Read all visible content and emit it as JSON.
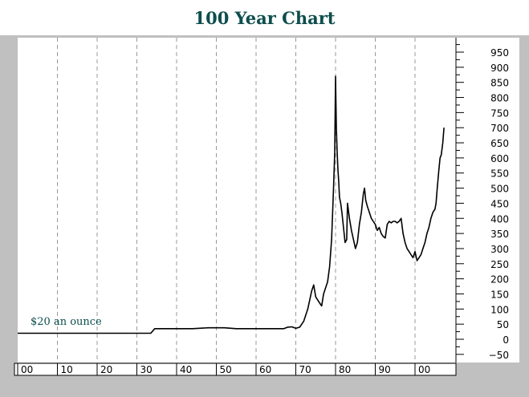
{
  "chart_data": {
    "type": "line",
    "title": "100 Year Chart",
    "xlabel": "",
    "ylabel": "",
    "x_ticks": [
      "00",
      "10",
      "20",
      "30",
      "40",
      "50",
      "60",
      "70",
      "80",
      "90",
      "00"
    ],
    "y_ticks": [
      -50,
      0,
      50,
      100,
      150,
      200,
      250,
      300,
      350,
      400,
      450,
      500,
      550,
      600,
      650,
      700,
      750,
      800,
      850,
      900,
      950
    ],
    "xlim": [
      1900,
      2011
    ],
    "ylim": [
      -70,
      1000
    ],
    "grid": "vertical dashed",
    "legend": "none",
    "annotation": "$20 an ounce",
    "line_color": "#000000",
    "title_color": "#0d4d4d",
    "series": [
      {
        "x": [
          1900,
          1933.5,
          1934.5,
          1939,
          1944,
          1948,
          1952,
          1955,
          1960,
          1967,
          1968,
          1969,
          1970,
          1971,
          1972,
          1973,
          1974,
          1974.5,
          1975,
          1976,
          1976.5,
          1977,
          1978,
          1978.5,
          1979,
          1979.5,
          1979.8,
          1980,
          1980.2,
          1980.4,
          1980.6,
          1980.8,
          1981,
          1981.3,
          1981.6,
          1982,
          1982.4,
          1982.8,
          1983,
          1983.5,
          1984,
          1984.5,
          1985,
          1985.5,
          1986,
          1986.5,
          1987,
          1987.3,
          1987.6,
          1988,
          1988.5,
          1989,
          1989.5,
          1990,
          1990.5,
          1991,
          1991.5,
          1992,
          1992.5,
          1993,
          1993.5,
          1994,
          1994.5,
          1995,
          1995.5,
          1996,
          1996.5,
          1997,
          1997.5,
          1998,
          1998.5,
          1999,
          1999.5,
          2000,
          2000.5,
          2001,
          2001.5,
          2002,
          2002.5,
          2003,
          2003.5,
          2004,
          2004.5,
          2005,
          2005.3,
          2005.6,
          2006,
          2006.3,
          2006.6,
          2007,
          2007.3
        ],
        "y": [
          20,
          20,
          35,
          35,
          35,
          38,
          38,
          35,
          35,
          35,
          40,
          41,
          36,
          40,
          60,
          100,
          160,
          180,
          140,
          120,
          110,
          150,
          190,
          240,
          330,
          500,
          620,
          870,
          700,
          620,
          560,
          520,
          470,
          450,
          420,
          370,
          320,
          330,
          450,
          400,
          360,
          330,
          300,
          320,
          380,
          420,
          480,
          500,
          460,
          440,
          420,
          400,
          390,
          380,
          360,
          370,
          350,
          340,
          335,
          380,
          390,
          385,
          390,
          390,
          385,
          390,
          400,
          350,
          320,
          300,
          290,
          280,
          270,
          290,
          260,
          270,
          280,
          300,
          320,
          350,
          370,
          400,
          420,
          430,
          450,
          500,
          560,
          600,
          610,
          650,
          700
        ]
      }
    ]
  }
}
